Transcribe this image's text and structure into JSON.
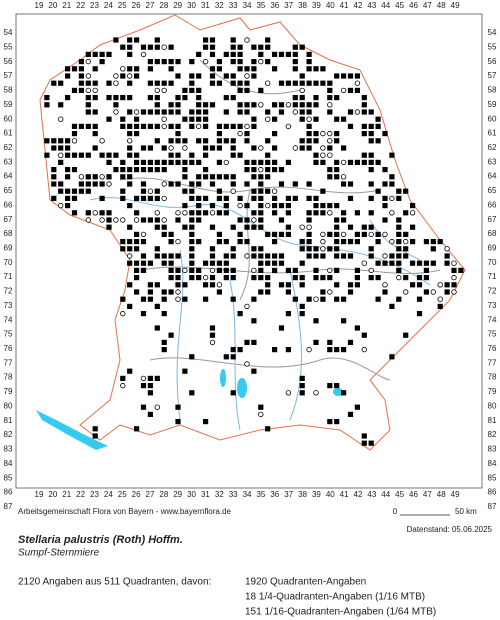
{
  "map": {
    "column_labels": [
      19,
      20,
      21,
      22,
      23,
      24,
      25,
      26,
      27,
      28,
      29,
      30,
      31,
      32,
      33,
      34,
      35,
      36,
      37,
      38,
      39,
      40,
      41,
      42,
      43,
      44,
      45,
      46,
      47,
      48,
      49
    ],
    "row_labels": [
      54,
      55,
      56,
      57,
      58,
      59,
      60,
      61,
      62,
      63,
      64,
      65,
      66,
      67,
      68,
      69,
      70,
      71,
      72,
      73,
      74,
      75,
      76,
      77,
      78,
      79,
      80,
      81,
      82,
      83,
      84,
      85,
      86,
      87
    ],
    "credit": "Arbeitsgemeinschaft Flora von Bayern - www.bayernflora.de",
    "scale_start": "0",
    "scale_end": "50 km",
    "date": "Datenstand: 05.06.2025"
  },
  "species": {
    "name": "Stellaria palustris (Roth) Hoffm.",
    "common_name": "Sumpf-Sternmiere"
  },
  "statistics": {
    "summary": "2120 Angaben aus 511 Quadranten, davon:",
    "lines": [
      "1920 Quadranten-Angaben",
      "18 1/4-Quadranten-Angaben (1/16 MTB)",
      "151 1/16-Quadranten-Angaben (1/64 MTB)"
    ]
  }
}
